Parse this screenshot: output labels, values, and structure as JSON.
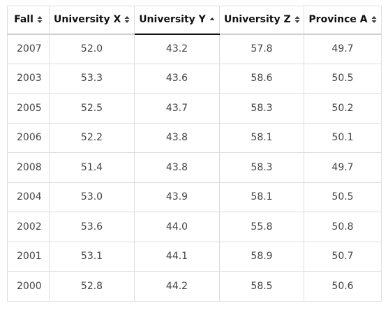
{
  "table": {
    "columns": [
      {
        "label": "Fall",
        "sort": "both"
      },
      {
        "label": "University X",
        "sort": "both"
      },
      {
        "label": "University Y",
        "sort": "asc"
      },
      {
        "label": "University Z",
        "sort": "both"
      },
      {
        "label": "Province A",
        "sort": "both"
      }
    ],
    "sorted_by": "University Y",
    "sort_direction": "ascending",
    "rows": [
      [
        "2007",
        "52.0",
        "43.2",
        "57.8",
        "49.7"
      ],
      [
        "2003",
        "53.3",
        "43.6",
        "58.6",
        "50.5"
      ],
      [
        "2005",
        "52.5",
        "43.7",
        "58.3",
        "50.2"
      ],
      [
        "2006",
        "52.2",
        "43.8",
        "58.1",
        "50.1"
      ],
      [
        "2008",
        "51.4",
        "43.8",
        "58.3",
        "49.7"
      ],
      [
        "2004",
        "53.0",
        "43.9",
        "58.1",
        "50.5"
      ],
      [
        "2002",
        "53.6",
        "44.0",
        "55.8",
        "50.8"
      ],
      [
        "2001",
        "53.1",
        "44.1",
        "58.9",
        "50.7"
      ],
      [
        "2000",
        "52.8",
        "44.2",
        "58.5",
        "50.6"
      ]
    ]
  },
  "colors": {
    "border": "#dddddd",
    "active_underline": "#111111",
    "header_text": "#111111",
    "cell_text": "#444444"
  }
}
